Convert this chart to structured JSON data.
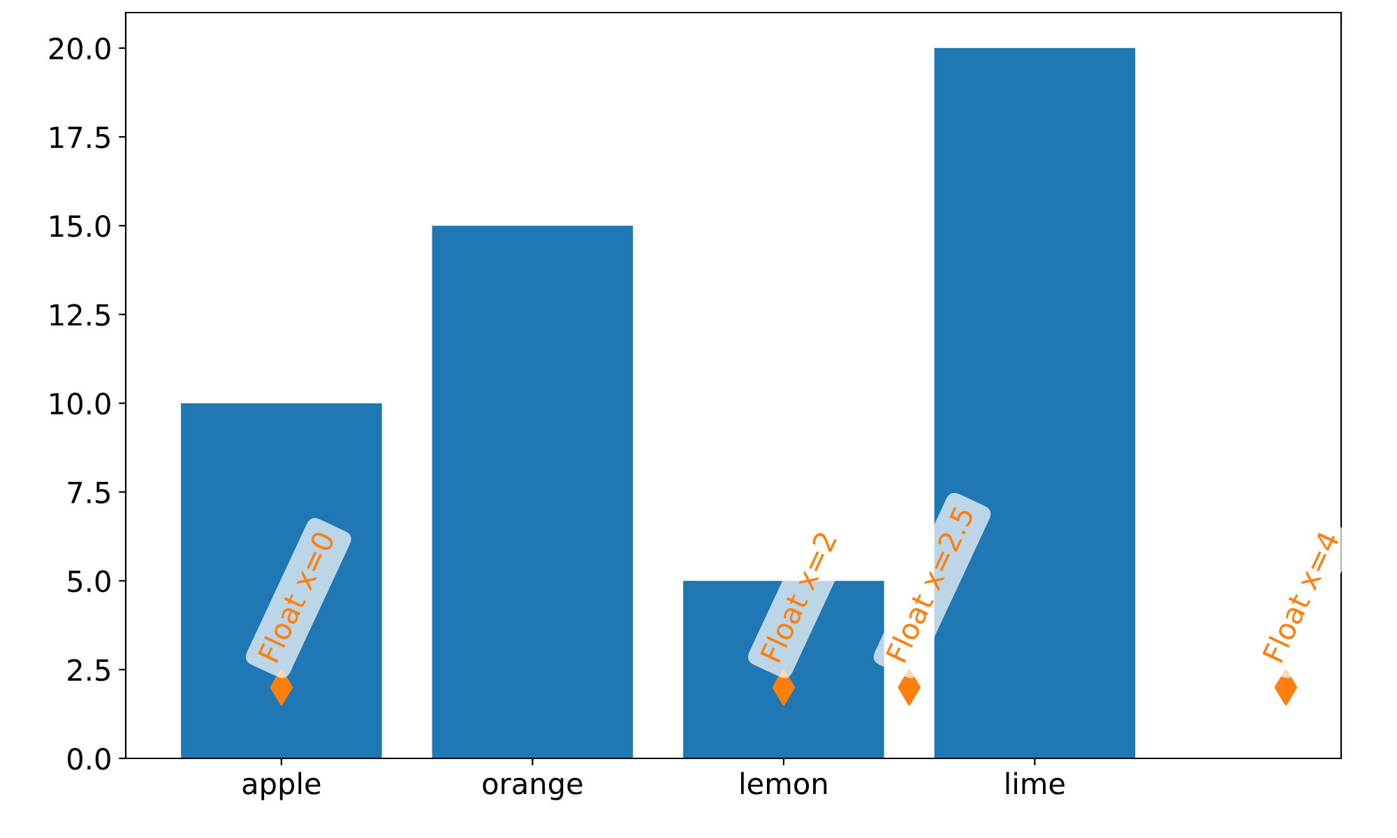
{
  "chart_data": {
    "type": "bar",
    "categories": [
      "apple",
      null,
      "orange",
      null,
      "lemon",
      null,
      "lime",
      null,
      null
    ],
    "series": [
      {
        "color": "#1f77b4",
        "values": [
          10,
          null,
          15,
          null,
          5,
          null,
          20,
          null,
          null
        ]
      },
      {
        "type": "scatter",
        "color": "#ff7f0e",
        "values": [
          2,
          null,
          null,
          null,
          2,
          2,
          null,
          null,
          2
        ],
        "marker": "diamond"
      }
    ],
    "annotations": [
      "Float x=0",
      "Float x=2",
      "Float x=2.5",
      "Float x=4"
    ],
    "ylim": [
      0,
      21
    ],
    "yticks": [
      {
        "value": 0,
        "label": "0.0"
      },
      2.5,
      {
        "value": 5,
        "label": "5.0"
      },
      7.5,
      {
        "value": 10,
        "label": "10.0"
      },
      12.5,
      {
        "value": 15,
        "label": "15.0"
      },
      17.5,
      {
        "value": 20,
        "label": "20.0"
      }
    ],
    "grid": false,
    "legend": false
  }
}
